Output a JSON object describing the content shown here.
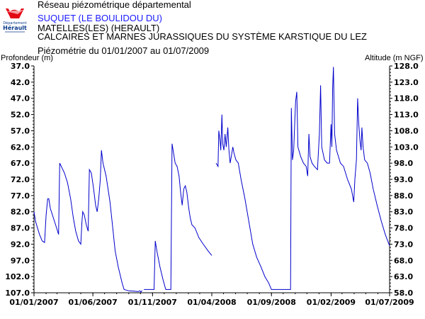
{
  "header": {
    "network": "Réseau piézométrique départemental",
    "station": "SUQUET (LE BOULIDOU DU)",
    "commune": "MATELLES(LES) (HERAULT)",
    "aquifer": "CALCAIRES ET MARNES JURASSIQUES DU SYSTÈME KARSTIQUE DU LEZ",
    "period": "Piézométrie du 01/01/2007 au 01/07/2009"
  },
  "logo": {
    "line1": "Département",
    "line2": "Hérault"
  },
  "colors": {
    "series": "#0000cc",
    "axis": "#000000",
    "header_station": "#1a1aff"
  },
  "chart_data": {
    "type": "line",
    "title": "Piézométrie du 01/01/2007 au 01/07/2009",
    "ylabel_left": "Profondeur (m)",
    "ylabel_right": "Altitude (m NGF)",
    "ylim_left_depth": [
      37.0,
      107.0
    ],
    "ylim_right_altitude": [
      58.0,
      128.0
    ],
    "y_ticks_left": [
      "37.0",
      "42.0",
      "47.0",
      "52.0",
      "57.0",
      "62.0",
      "67.0",
      "72.0",
      "77.0",
      "82.0",
      "87.0",
      "92.0",
      "97.0",
      "102.0",
      "107.0"
    ],
    "y_ticks_right": [
      "128.0",
      "123.0",
      "118.0",
      "113.0",
      "108.0",
      "103.0",
      "98.0",
      "93.0",
      "88.0",
      "83.0",
      "78.0",
      "73.0",
      "68.0",
      "63.0",
      "58.0"
    ],
    "x_ticks": [
      "01/01/2007",
      "01/06/2007",
      "01/11/2007",
      "01/04/2008",
      "01/09/2008",
      "01/02/2009",
      "01/07/2009"
    ],
    "x_range": [
      "2007-01-01",
      "2009-07-01"
    ],
    "y_inverted_depth": true,
    "grid": false,
    "series": [
      {
        "segments": [
          [
            [
              "2007-01-01",
              82
            ],
            [
              "2007-01-05",
              85
            ],
            [
              "2007-01-15",
              89
            ],
            [
              "2007-01-22",
              91
            ],
            [
              "2007-01-28",
              91.5
            ],
            [
              "2007-02-01",
              83
            ],
            [
              "2007-02-05",
              78
            ],
            [
              "2007-02-08",
              78
            ],
            [
              "2007-02-12",
              81
            ],
            [
              "2007-02-20",
              84
            ],
            [
              "2007-02-28",
              87
            ],
            [
              "2007-03-05",
              89
            ],
            [
              "2007-03-08",
              67
            ],
            [
              "2007-03-12",
              68
            ],
            [
              "2007-03-20",
              70
            ],
            [
              "2007-03-28",
              73
            ],
            [
              "2007-04-05",
              78
            ],
            [
              "2007-04-12",
              84
            ],
            [
              "2007-04-18",
              88
            ],
            [
              "2007-04-25",
              91
            ],
            [
              "2007-05-01",
              92
            ],
            [
              "2007-05-04",
              85
            ],
            [
              "2007-05-06",
              82
            ],
            [
              "2007-05-10",
              83
            ],
            [
              "2007-05-15",
              86
            ],
            [
              "2007-05-20",
              88
            ],
            [
              "2007-05-23",
              69
            ],
            [
              "2007-05-28",
              70
            ],
            [
              "2007-06-03",
              75
            ],
            [
              "2007-06-08",
              80
            ],
            [
              "2007-06-12",
              82
            ],
            [
              "2007-06-16",
              78
            ],
            [
              "2007-06-20",
              72
            ],
            [
              "2007-06-23",
              63
            ],
            [
              "2007-06-27",
              67
            ],
            [
              "2007-07-05",
              71
            ],
            [
              "2007-07-15",
              79
            ],
            [
              "2007-07-22",
              87
            ],
            [
              "2007-07-28",
              94
            ],
            [
              "2007-08-05",
              99
            ],
            [
              "2007-08-15",
              104
            ],
            [
              "2007-08-20",
              106
            ],
            [
              "2007-09-01",
              106.4
            ],
            [
              "2007-09-15",
              106.5
            ],
            [
              "2007-09-25",
              106.6
            ],
            [
              "2007-09-30",
              106.4
            ],
            [
              "2007-10-02",
              106.8
            ],
            [
              "2007-10-05",
              106.3
            ]
          ],
          [
            [
              "2007-10-10",
              106
            ],
            [
              "2007-10-20",
              106
            ],
            [
              "2007-10-30",
              106
            ],
            [
              "2007-11-05",
              106
            ],
            [
              "2007-11-08",
              91
            ],
            [
              "2007-11-12",
              94
            ],
            [
              "2007-11-20",
              99
            ],
            [
              "2007-11-28",
              103
            ],
            [
              "2007-12-05",
              106
            ],
            [
              "2007-12-15",
              106
            ],
            [
              "2007-12-18",
              106
            ],
            [
              "2007-12-21",
              61
            ],
            [
              "2007-12-25",
              64
            ],
            [
              "2007-12-29",
              67
            ],
            [
              "2008-01-03",
              68
            ],
            [
              "2008-01-08",
              71
            ],
            [
              "2008-01-12",
              76
            ],
            [
              "2008-01-16",
              80
            ],
            [
              "2008-01-20",
              75
            ],
            [
              "2008-01-24",
              74
            ],
            [
              "2008-01-28",
              76
            ],
            [
              "2008-02-02",
              81
            ],
            [
              "2008-02-06",
              84
            ],
            [
              "2008-02-10",
              86
            ],
            [
              "2008-02-18",
              87
            ],
            [
              "2008-02-28",
              90
            ],
            [
              "2008-03-10",
              92
            ],
            [
              "2008-03-22",
              94
            ],
            [
              "2008-04-01",
              95.5
            ]
          ],
          [
            [
              "2008-04-12",
              67
            ],
            [
              "2008-04-17",
              68
            ],
            [
              "2008-04-19",
              57
            ],
            [
              "2008-04-22",
              60
            ],
            [
              "2008-04-24",
              63
            ],
            [
              "2008-04-27",
              52
            ],
            [
              "2008-04-29",
              61
            ],
            [
              "2008-05-02",
              63
            ],
            [
              "2008-05-05",
              58
            ],
            [
              "2008-05-08",
              62
            ],
            [
              "2008-05-12",
              56
            ],
            [
              "2008-05-15",
              63
            ],
            [
              "2008-05-18",
              67
            ],
            [
              "2008-05-21",
              65
            ],
            [
              "2008-05-25",
              62
            ],
            [
              "2008-05-28",
              64
            ],
            [
              "2008-06-02",
              66
            ],
            [
              "2008-06-08",
              67
            ],
            [
              "2008-06-15",
              72
            ],
            [
              "2008-06-25",
              78
            ],
            [
              "2008-07-05",
              85
            ],
            [
              "2008-07-15",
              92
            ],
            [
              "2008-07-25",
              96
            ],
            [
              "2008-08-05",
              99
            ],
            [
              "2008-08-15",
              102
            ],
            [
              "2008-08-25",
              104
            ],
            [
              "2008-09-01",
              106
            ],
            [
              "2008-09-15",
              106
            ],
            [
              "2008-09-30",
              106
            ],
            [
              "2008-10-15",
              106
            ],
            [
              "2008-10-20",
              106
            ],
            [
              "2008-10-22",
              50
            ],
            [
              "2008-10-25",
              66
            ],
            [
              "2008-10-28",
              63
            ],
            [
              "2008-11-02",
              48
            ],
            [
              "2008-11-05",
              45
            ],
            [
              "2008-11-08",
              62
            ],
            [
              "2008-11-15",
              65
            ],
            [
              "2008-11-22",
              67
            ],
            [
              "2008-11-29",
              68
            ],
            [
              "2008-12-03",
              71
            ],
            [
              "2008-12-06",
              58
            ],
            [
              "2008-12-09",
              65
            ],
            [
              "2008-12-14",
              67
            ],
            [
              "2008-12-20",
              68
            ],
            [
              "2008-12-28",
              69
            ],
            [
              "2009-01-02",
              58
            ],
            [
              "2009-01-05",
              43
            ],
            [
              "2009-01-08",
              62
            ],
            [
              "2009-01-15",
              66
            ],
            [
              "2009-01-22",
              67
            ],
            [
              "2009-01-28",
              67
            ],
            [
              "2009-02-01",
              55
            ],
            [
              "2009-02-03",
              62
            ],
            [
              "2009-02-05",
              44
            ],
            [
              "2009-02-07",
              37.3
            ],
            [
              "2009-02-10",
              58
            ],
            [
              "2009-02-15",
              63
            ],
            [
              "2009-02-25",
              67
            ],
            [
              "2009-03-05",
              68
            ],
            [
              "2009-03-15",
              72
            ],
            [
              "2009-03-25",
              75
            ],
            [
              "2009-03-31",
              79
            ],
            [
              "2009-04-03",
              72
            ],
            [
              "2009-04-07",
              66
            ],
            [
              "2009-04-10",
              47
            ],
            [
              "2009-04-13",
              55
            ],
            [
              "2009-04-16",
              60
            ],
            [
              "2009-04-19",
              63
            ],
            [
              "2009-04-21",
              56
            ],
            [
              "2009-04-24",
              62
            ],
            [
              "2009-04-28",
              66
            ],
            [
              "2009-05-05",
              67
            ],
            [
              "2009-05-12",
              70
            ],
            [
              "2009-05-20",
              75
            ],
            [
              "2009-05-30",
              80
            ],
            [
              "2009-06-10",
              85
            ],
            [
              "2009-06-20",
              89
            ],
            [
              "2009-07-01",
              92.5
            ]
          ]
        ]
      }
    ]
  }
}
